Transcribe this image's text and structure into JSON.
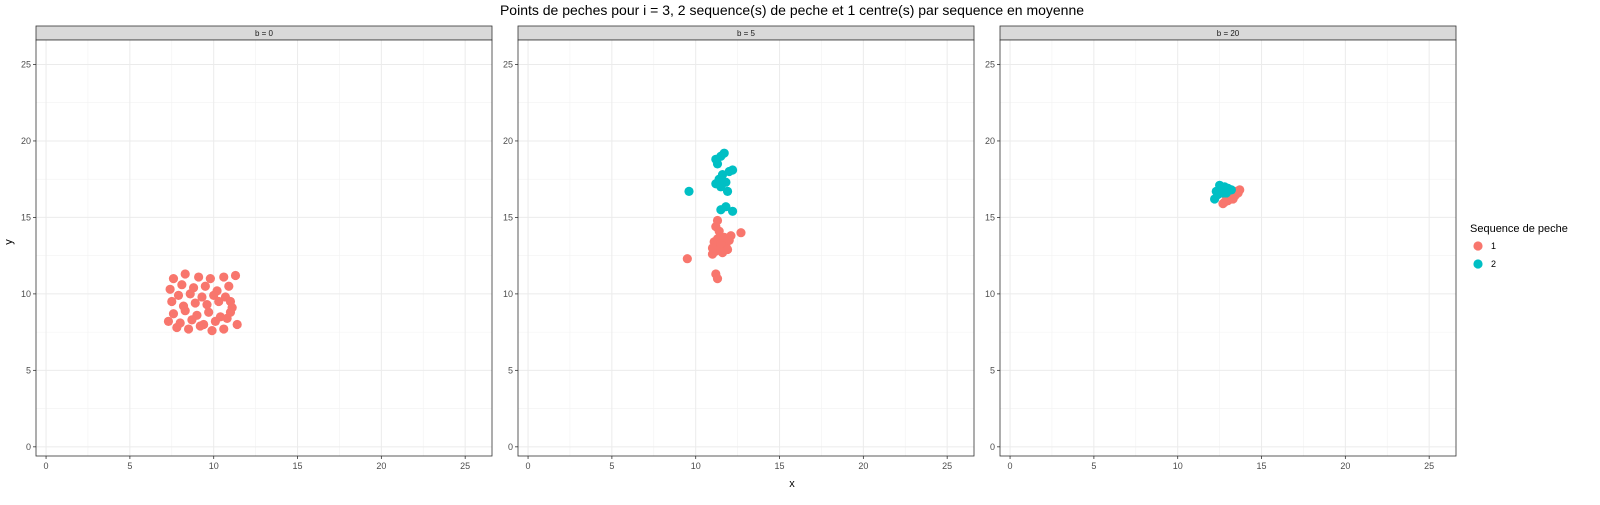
{
  "chart_data": {
    "type": "scatter",
    "title": "Points de peches pour i = 3, 2 sequence(s) de peche et 1 centre(s) par sequence en moyenne",
    "xlabel": "x",
    "ylabel": "y",
    "xlim": [
      -0.6,
      26.6
    ],
    "ylim": [
      -0.6,
      26.6
    ],
    "xticks": [
      0,
      5,
      10,
      15,
      20,
      25
    ],
    "yticks": [
      0,
      5,
      10,
      15,
      20,
      25
    ],
    "grid": true,
    "legend": {
      "title": "Sequence de peche",
      "placement": "right",
      "entries": [
        {
          "label": "1",
          "color": "#F8766D"
        },
        {
          "label": "2",
          "color": "#00BFC4"
        }
      ]
    },
    "panels": [
      {
        "label": "b = 0",
        "series": [
          {
            "name": "1",
            "color": "#F8766D",
            "points": [
              [
                7.6,
                11.0
              ],
              [
                8.3,
                11.3
              ],
              [
                9.1,
                11.1
              ],
              [
                9.8,
                11.0
              ],
              [
                10.6,
                11.1
              ],
              [
                11.3,
                11.2
              ],
              [
                7.4,
                10.3
              ],
              [
                8.1,
                10.6
              ],
              [
                8.8,
                10.4
              ],
              [
                9.5,
                10.5
              ],
              [
                10.2,
                10.2
              ],
              [
                10.9,
                10.5
              ],
              [
                7.9,
                9.9
              ],
              [
                8.6,
                10.0
              ],
              [
                9.3,
                9.8
              ],
              [
                10.0,
                9.9
              ],
              [
                10.7,
                9.8
              ],
              [
                11.0,
                9.5
              ],
              [
                7.5,
                9.5
              ],
              [
                8.2,
                9.2
              ],
              [
                8.9,
                9.4
              ],
              [
                9.6,
                9.3
              ],
              [
                10.3,
                9.5
              ],
              [
                11.1,
                9.1
              ],
              [
                7.6,
                8.7
              ],
              [
                8.3,
                8.9
              ],
              [
                9.0,
                8.6
              ],
              [
                9.7,
                8.8
              ],
              [
                10.4,
                8.5
              ],
              [
                11.0,
                8.8
              ],
              [
                7.3,
                8.2
              ],
              [
                8.0,
                8.1
              ],
              [
                8.7,
                8.3
              ],
              [
                9.4,
                8.0
              ],
              [
                10.1,
                8.2
              ],
              [
                10.8,
                8.4
              ],
              [
                11.4,
                8.0
              ],
              [
                7.8,
                7.8
              ],
              [
                8.5,
                7.7
              ],
              [
                9.2,
                7.9
              ],
              [
                9.9,
                7.6
              ],
              [
                10.6,
                7.7
              ]
            ]
          }
        ]
      },
      {
        "label": "b = 5",
        "series": [
          {
            "name": "1",
            "color": "#F8766D",
            "points": [
              [
                9.5,
                12.3
              ],
              [
                11.2,
                11.3
              ],
              [
                11.3,
                11.0
              ],
              [
                12.7,
                14.0
              ],
              [
                11.3,
                14.8
              ],
              [
                11.2,
                14.4
              ],
              [
                11.0,
                12.6
              ],
              [
                11.2,
                12.8
              ],
              [
                11.4,
                13.0
              ],
              [
                11.6,
                12.7
              ],
              [
                11.8,
                13.2
              ],
              [
                11.1,
                13.4
              ],
              [
                11.3,
                13.6
              ],
              [
                11.5,
                13.3
              ],
              [
                11.7,
                13.7
              ],
              [
                12.0,
                13.5
              ],
              [
                11.0,
                13.0
              ],
              [
                11.9,
                12.9
              ],
              [
                11.4,
                14.1
              ],
              [
                12.1,
                13.8
              ]
            ]
          },
          {
            "name": "2",
            "color": "#00BFC4",
            "points": [
              [
                9.6,
                16.7
              ],
              [
                11.5,
                15.5
              ],
              [
                11.8,
                15.7
              ],
              [
                12.2,
                15.4
              ],
              [
                11.2,
                17.2
              ],
              [
                11.4,
                17.5
              ],
              [
                11.6,
                17.8
              ],
              [
                11.8,
                17.3
              ],
              [
                12.0,
                18.0
              ],
              [
                12.2,
                18.1
              ],
              [
                11.3,
                18.5
              ],
              [
                11.5,
                19.0
              ],
              [
                11.7,
                19.2
              ],
              [
                11.2,
                18.8
              ],
              [
                11.9,
                16.7
              ],
              [
                11.5,
                17.0
              ]
            ]
          }
        ]
      },
      {
        "label": "b = 20",
        "series": [
          {
            "name": "1",
            "color": "#F8766D",
            "points": [
              [
                12.8,
                16.0
              ],
              [
                13.0,
                16.1
              ],
              [
                13.2,
                16.3
              ],
              [
                13.4,
                16.4
              ],
              [
                13.6,
                16.6
              ],
              [
                13.7,
                16.8
              ],
              [
                12.9,
                16.4
              ],
              [
                13.1,
                16.5
              ],
              [
                13.3,
                16.2
              ],
              [
                13.5,
                16.7
              ],
              [
                12.7,
                15.9
              ],
              [
                13.2,
                16.6
              ]
            ]
          },
          {
            "name": "2",
            "color": "#00BFC4",
            "points": [
              [
                12.2,
                16.2
              ],
              [
                12.4,
                16.5
              ],
              [
                12.6,
                16.8
              ],
              [
                12.8,
                17.0
              ],
              [
                13.0,
                16.9
              ],
              [
                13.2,
                16.8
              ],
              [
                12.5,
                17.1
              ],
              [
                12.7,
                16.6
              ],
              [
                12.3,
                16.7
              ],
              [
                12.9,
                16.6
              ]
            ]
          }
        ]
      }
    ]
  }
}
